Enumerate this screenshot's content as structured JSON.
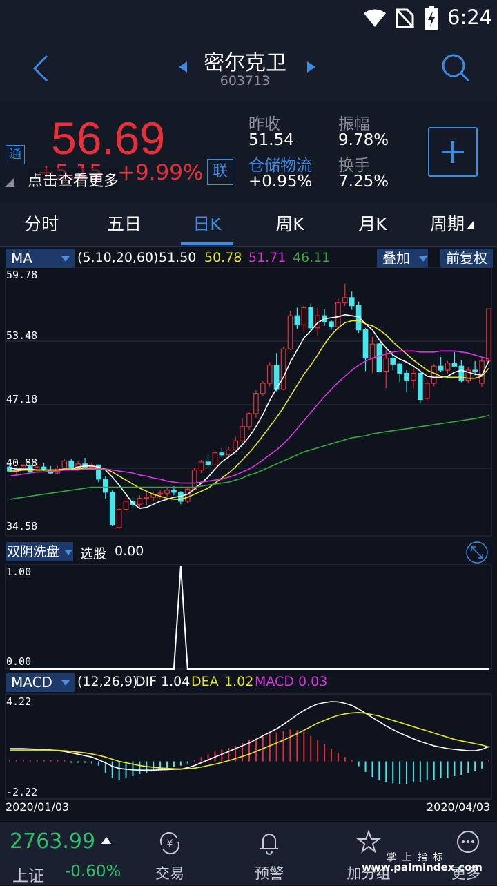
{
  "status": {
    "time": "6:24"
  },
  "header": {
    "stock_name": "密尔克卫",
    "stock_code": "603713"
  },
  "quote": {
    "price": "56.69",
    "change": "+5.15",
    "change_pct": "+9.99%",
    "tong_badge": "通",
    "lian_badge": "联",
    "hint": "点击查看更多",
    "prev_close_label": "昨收",
    "prev_close": "51.54",
    "amplitude_label": "振幅",
    "amplitude": "9.78%",
    "sector_label": "仓储物流",
    "sector_change": "+0.95%",
    "turnover_label": "换手",
    "turnover": "7.25%"
  },
  "tabs": [
    "分时",
    "五日",
    "日K",
    "周K",
    "月K",
    "周期"
  ],
  "active_tab": 2,
  "ma_bar": {
    "selector": "MA",
    "params": "(5,10,20,60)",
    "ma5": "51.50",
    "ma10": "50.78",
    "ma20": "51.71",
    "ma60": "46.11",
    "overlay": "叠加",
    "adjust": "前复权"
  },
  "indicator_bar": {
    "selector": "双阴洗盘",
    "label": "选股",
    "value": "0.00"
  },
  "macd_bar": {
    "selector": "MACD",
    "params": "(12,26,9)",
    "dif_label": "DIF",
    "dif": "1.04",
    "dea_label": "DEA",
    "dea": "1.02",
    "macd_label": "MACD",
    "macd": "0.03"
  },
  "colors": {
    "up": "#e8303a",
    "down": "#43e8ee",
    "ma5": "#ffffff",
    "ma10": "#e6e62e",
    "ma20": "#d936e0",
    "ma60": "#38a838",
    "accent": "#3c8ce6",
    "index_up": "#2fc06a"
  },
  "bottom": {
    "index_value": "2763.99",
    "index_name": "上证",
    "index_change": "-0.60%",
    "nav": [
      {
        "label": "交易",
        "icon": "yen-cycle-icon"
      },
      {
        "label": "预警",
        "icon": "bell-icon"
      },
      {
        "label": "加分组",
        "icon": "star-icon"
      },
      {
        "label": "更多",
        "icon": "more-icon"
      }
    ],
    "watermark_top": "掌 上 指 标",
    "watermark": "www.palmindex.com"
  },
  "chart_data": [
    {
      "type": "candlestick",
      "title": "日K",
      "y_ticks": [
        "59.78",
        "53.48",
        "47.18",
        "40.88",
        "34.58"
      ],
      "ylim": [
        34.58,
        59.78
      ],
      "x_start_label": "2020/01/03",
      "x_end_label": "2020/04/03",
      "candles": [
        [
          41.0,
          41.2,
          40.5,
          40.6
        ],
        [
          40.6,
          41.0,
          40.2,
          40.8
        ],
        [
          40.8,
          41.3,
          40.6,
          41.1
        ],
        [
          41.1,
          41.2,
          40.4,
          40.5
        ],
        [
          40.5,
          41.3,
          40.4,
          41.0
        ],
        [
          41.0,
          41.4,
          40.6,
          40.7
        ],
        [
          40.7,
          41.1,
          40.3,
          40.4
        ],
        [
          40.4,
          41.1,
          40.3,
          40.9
        ],
        [
          40.9,
          41.8,
          40.8,
          41.6
        ],
        [
          41.6,
          41.8,
          40.8,
          41.0
        ],
        [
          41.0,
          41.6,
          40.8,
          41.3
        ],
        [
          41.3,
          41.9,
          40.8,
          41.0
        ],
        [
          41.0,
          41.4,
          40.7,
          41.2
        ],
        [
          41.2,
          41.2,
          39.5,
          39.8
        ],
        [
          39.8,
          40.1,
          37.8,
          38.5
        ],
        [
          38.5,
          38.7,
          35.2,
          35.3
        ],
        [
          35.0,
          37.0,
          34.8,
          36.8
        ],
        [
          36.8,
          38.0,
          36.5,
          37.6
        ],
        [
          37.6,
          38.1,
          37.0,
          37.3
        ],
        [
          37.3,
          38.2,
          37.0,
          37.9
        ],
        [
          37.9,
          38.5,
          37.2,
          38.0
        ],
        [
          38.0,
          38.6,
          37.6,
          38.3
        ],
        [
          38.3,
          38.7,
          37.9,
          38.4
        ],
        [
          38.4,
          38.9,
          38.0,
          38.7
        ],
        [
          38.7,
          39.1,
          38.2,
          38.5
        ],
        [
          38.5,
          38.6,
          37.3,
          37.6
        ],
        [
          37.6,
          38.9,
          37.4,
          38.8
        ],
        [
          38.8,
          40.9,
          38.7,
          40.7
        ],
        [
          40.7,
          41.7,
          40.4,
          41.5
        ],
        [
          41.5,
          42.2,
          41.0,
          41.2
        ],
        [
          41.2,
          42.5,
          41.1,
          42.4
        ],
        [
          42.4,
          42.9,
          42.0,
          42.2
        ],
        [
          42.2,
          43.0,
          41.9,
          42.7
        ],
        [
          42.7,
          44.0,
          42.6,
          43.6
        ],
        [
          43.6,
          45.8,
          43.4,
          45.0
        ],
        [
          45.0,
          46.5,
          44.7,
          46.3
        ],
        [
          46.3,
          48.6,
          45.9,
          48.3
        ],
        [
          48.3,
          49.5,
          48.0,
          49.3
        ],
        [
          49.3,
          51.4,
          49.0,
          51.1
        ],
        [
          51.1,
          52.3,
          48.5,
          48.7
        ],
        [
          48.7,
          52.9,
          48.6,
          52.7
        ],
        [
          52.7,
          56.5,
          52.6,
          56.0
        ],
        [
          56.0,
          56.8,
          54.7,
          55.1
        ],
        [
          55.1,
          57.1,
          54.4,
          56.8
        ],
        [
          56.8,
          57.2,
          54.5,
          54.8
        ],
        [
          54.8,
          56.8,
          54.0,
          56.0
        ],
        [
          56.0,
          56.7,
          55.0,
          55.4
        ],
        [
          55.4,
          55.6,
          54.6,
          54.9
        ],
        [
          54.9,
          57.7,
          54.6,
          57.3
        ],
        [
          57.3,
          59.2,
          57.0,
          57.8
        ],
        [
          57.8,
          58.4,
          56.6,
          57.0
        ],
        [
          57.0,
          57.4,
          54.3,
          54.6
        ],
        [
          54.6,
          54.8,
          50.5,
          51.8
        ],
        [
          51.8,
          53.9,
          50.3,
          53.2
        ],
        [
          53.2,
          53.3,
          50.4,
          50.5
        ],
        [
          50.5,
          52.6,
          48.8,
          51.8
        ],
        [
          51.8,
          52.5,
          50.6,
          51.2
        ],
        [
          51.2,
          51.3,
          49.4,
          50.3
        ],
        [
          50.3,
          50.6,
          48.4,
          49.6
        ],
        [
          49.6,
          50.9,
          48.7,
          50.3
        ],
        [
          50.3,
          50.4,
          47.3,
          47.7
        ],
        [
          47.8,
          49.6,
          47.5,
          49.3
        ],
        [
          49.3,
          51.2,
          49.0,
          51.0
        ],
        [
          51.0,
          51.9,
          50.4,
          50.6
        ],
        [
          50.6,
          51.5,
          50.3,
          51.3
        ],
        [
          51.3,
          52.4,
          50.9,
          51.0
        ],
        [
          51.0,
          51.6,
          49.4,
          49.6
        ],
        [
          49.6,
          50.9,
          49.3,
          50.6
        ],
        [
          50.6,
          51.5,
          50.1,
          50.5
        ],
        [
          49.3,
          51.9,
          48.9,
          51.5
        ],
        [
          51.5,
          56.7,
          51.4,
          56.69
        ]
      ],
      "ma_series": [
        {
          "name": "MA5",
          "values": [
            40.9,
            40.8,
            40.8,
            40.8,
            40.7,
            40.7,
            40.7,
            40.7,
            40.8,
            40.8,
            41.0,
            41.1,
            41.1,
            41.0,
            40.7,
            40.0,
            39.2,
            38.3,
            37.4,
            36.9,
            37.0,
            37.3,
            37.6,
            37.8,
            38.0,
            38.1,
            38.3,
            38.8,
            39.4,
            40.0,
            40.8,
            41.5,
            42.0,
            42.5,
            43.2,
            44.0,
            45.0,
            46.2,
            47.6,
            48.8,
            49.9,
            51.4,
            52.6,
            53.8,
            54.5,
            55.3,
            55.7,
            55.8,
            55.9,
            56.1,
            56.0,
            55.9,
            55.2,
            54.6,
            53.6,
            52.8,
            52.1,
            51.7,
            51.4,
            51.0,
            50.5,
            50.0,
            49.9,
            49.9,
            50.0,
            50.4,
            50.6,
            50.4,
            50.2,
            50.1,
            51.5
          ]
        },
        {
          "name": "MA10",
          "values": [
            40.6,
            40.6,
            40.7,
            40.7,
            40.7,
            40.7,
            40.7,
            40.7,
            40.8,
            40.8,
            40.8,
            40.9,
            40.9,
            40.9,
            40.8,
            40.5,
            40.1,
            39.7,
            39.3,
            38.9,
            38.6,
            38.3,
            38.1,
            37.9,
            37.8,
            37.8,
            38.0,
            38.3,
            38.6,
            38.9,
            39.4,
            39.9,
            40.4,
            41.0,
            41.7,
            42.4,
            43.2,
            44.1,
            45.0,
            45.9,
            46.9,
            48.0,
            49.1,
            50.2,
            51.1,
            52.1,
            53.2,
            54.1,
            54.8,
            55.3,
            55.5,
            55.5,
            55.2,
            55.0,
            54.6,
            54.1,
            53.4,
            52.8,
            52.2,
            51.6,
            51.1,
            50.6,
            50.3,
            50.0,
            49.9,
            49.9,
            49.9,
            49.8,
            49.8,
            50.0,
            50.78
          ]
        },
        {
          "name": "MA20",
          "values": [
            40.1,
            40.2,
            40.3,
            40.4,
            40.5,
            40.5,
            40.6,
            40.6,
            40.7,
            40.7,
            40.7,
            40.8,
            40.8,
            40.8,
            40.8,
            40.7,
            40.6,
            40.5,
            40.4,
            40.2,
            40.1,
            39.9,
            39.8,
            39.6,
            39.5,
            39.4,
            39.4,
            39.4,
            39.5,
            39.6,
            39.7,
            39.8,
            40.0,
            40.2,
            40.5,
            40.8,
            41.2,
            41.7,
            42.2,
            42.7,
            43.3,
            44.0,
            44.8,
            45.6,
            46.4,
            47.2,
            48.0,
            48.7,
            49.4,
            50.0,
            50.6,
            51.1,
            51.5,
            51.8,
            52.0,
            52.2,
            52.4,
            52.5,
            52.5,
            52.5,
            52.4,
            52.4,
            52.4,
            52.5,
            52.5,
            52.5,
            52.4,
            52.3,
            52.1,
            51.9,
            51.71
          ]
        },
        {
          "name": "MA60",
          "values": [
            37.8,
            37.9,
            38.0,
            38.1,
            38.2,
            38.3,
            38.4,
            38.5,
            38.6,
            38.7,
            38.8,
            38.9,
            39.0,
            39.0,
            39.0,
            39.0,
            39.0,
            39.0,
            39.0,
            39.0,
            39.0,
            39.0,
            39.0,
            39.0,
            39.0,
            39.0,
            39.0,
            39.0,
            39.1,
            39.2,
            39.3,
            39.4,
            39.5,
            39.7,
            39.9,
            40.2,
            40.4,
            40.7,
            41.0,
            41.3,
            41.6,
            41.9,
            42.2,
            42.5,
            42.7,
            42.9,
            43.1,
            43.3,
            43.5,
            43.7,
            43.9,
            44.0,
            44.1,
            44.3,
            44.4,
            44.5,
            44.6,
            44.7,
            44.8,
            44.9,
            45.0,
            45.1,
            45.2,
            45.3,
            45.4,
            45.5,
            45.6,
            45.7,
            45.8,
            45.95,
            46.11
          ]
        }
      ]
    },
    {
      "type": "line",
      "title": "双阴洗盘",
      "y_ticks": [
        "1.00",
        "0.00"
      ],
      "ylim": [
        0,
        1
      ],
      "series": [
        {
          "name": "选股",
          "values": [
            0,
            0,
            0,
            0,
            0,
            0,
            0,
            0,
            0,
            0,
            0,
            0,
            0,
            0,
            0,
            0,
            0,
            0,
            0,
            0,
            0,
            0,
            0,
            0,
            0,
            1,
            0,
            0,
            0,
            0,
            0,
            0,
            0,
            0,
            0,
            0,
            0,
            0,
            0,
            0,
            0,
            0,
            0,
            0,
            0,
            0,
            0,
            0,
            0,
            0,
            0,
            0,
            0,
            0,
            0,
            0,
            0,
            0,
            0,
            0,
            0,
            0,
            0,
            0,
            0,
            0,
            0,
            0,
            0,
            0,
            0
          ]
        }
      ]
    },
    {
      "type": "bar",
      "title": "MACD",
      "y_ticks": [
        "4.22",
        "-2.22"
      ],
      "ylim": [
        -2.22,
        4.22
      ],
      "macd": [
        0.05,
        0.05,
        0.05,
        0.05,
        0.05,
        0.05,
        0.05,
        0.05,
        0.0,
        -0.05,
        -0.1,
        -0.1,
        -0.15,
        -0.3,
        -0.8,
        -1.2,
        -1.3,
        -1.2,
        -1.05,
        -0.9,
        -0.8,
        -0.7,
        -0.6,
        -0.5,
        -0.4,
        -0.3,
        -0.15,
        0.05,
        0.3,
        0.5,
        0.7,
        0.85,
        0.95,
        1.1,
        1.3,
        1.5,
        1.6,
        1.75,
        1.95,
        2.05,
        2.15,
        2.25,
        2.2,
        2.1,
        1.8,
        1.5,
        1.2,
        0.9,
        0.6,
        0.3,
        0.0,
        -0.35,
        -0.75,
        -1.1,
        -1.35,
        -1.45,
        -1.55,
        -1.6,
        -1.6,
        -1.5,
        -1.45,
        -1.35,
        -1.3,
        -1.2,
        -1.15,
        -1.05,
        -0.95,
        -0.85,
        -0.7,
        -0.5,
        0.03
      ],
      "dif": [
        0.9,
        0.9,
        0.9,
        0.88,
        0.86,
        0.84,
        0.8,
        0.76,
        0.7,
        0.6,
        0.5,
        0.4,
        0.3,
        0.1,
        -0.1,
        -0.35,
        -0.5,
        -0.55,
        -0.6,
        -0.62,
        -0.62,
        -0.62,
        -0.6,
        -0.58,
        -0.56,
        -0.55,
        -0.45,
        -0.3,
        -0.1,
        0.1,
        0.3,
        0.5,
        0.7,
        0.9,
        1.1,
        1.3,
        1.55,
        1.8,
        2.05,
        2.3,
        2.6,
        2.95,
        3.3,
        3.6,
        3.85,
        4.05,
        4.15,
        4.22,
        4.2,
        4.1,
        3.95,
        3.7,
        3.4,
        3.1,
        2.8,
        2.5,
        2.25,
        2.0,
        1.8,
        1.6,
        1.4,
        1.25,
        1.1,
        1.0,
        0.9,
        0.85,
        0.8,
        0.75,
        0.75,
        0.85,
        1.04
      ],
      "dea": [
        0.8,
        0.8,
        0.8,
        0.8,
        0.8,
        0.8,
        0.8,
        0.78,
        0.75,
        0.7,
        0.65,
        0.6,
        0.52,
        0.42,
        0.3,
        0.15,
        0.0,
        -0.1,
        -0.2,
        -0.3,
        -0.36,
        -0.42,
        -0.47,
        -0.5,
        -0.52,
        -0.54,
        -0.52,
        -0.48,
        -0.4,
        -0.3,
        -0.2,
        -0.08,
        0.05,
        0.2,
        0.35,
        0.5,
        0.7,
        0.9,
        1.1,
        1.3,
        1.5,
        1.72,
        1.95,
        2.2,
        2.45,
        2.7,
        2.9,
        3.1,
        3.25,
        3.35,
        3.42,
        3.45,
        3.4,
        3.3,
        3.2,
        3.05,
        2.9,
        2.75,
        2.6,
        2.45,
        2.3,
        2.15,
        2.0,
        1.85,
        1.7,
        1.55,
        1.45,
        1.35,
        1.25,
        1.15,
        1.02
      ]
    }
  ]
}
